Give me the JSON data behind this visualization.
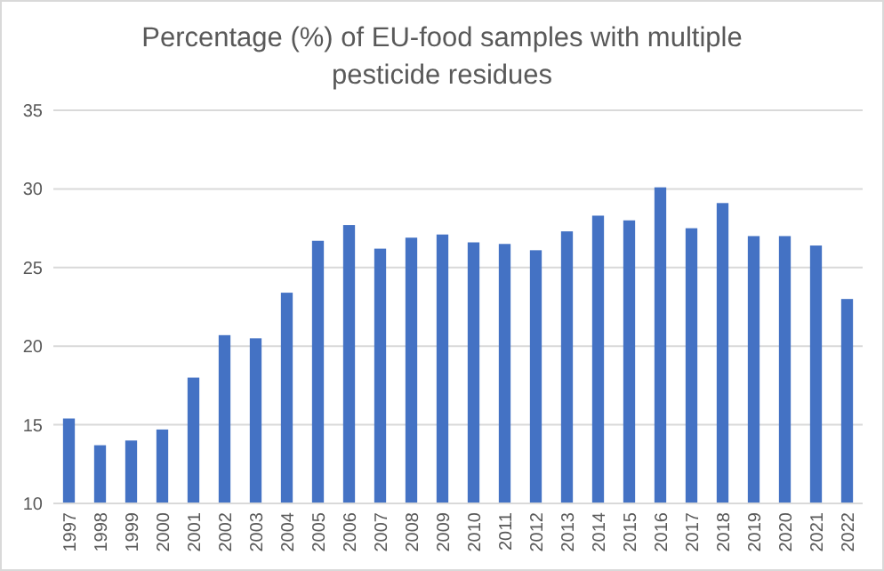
{
  "chart_data": {
    "type": "bar",
    "title": "Percentage (%) of EU-food samples with multiple pesticide residues",
    "categories": [
      "1997",
      "1998",
      "1999",
      "2000",
      "2001",
      "2002",
      "2003",
      "2004",
      "2005",
      "2006",
      "2007",
      "2008",
      "2009",
      "2010",
      "2011",
      "2012",
      "2013",
      "2014",
      "2015",
      "2016",
      "2017",
      "2018",
      "2019",
      "2020",
      "2021",
      "2022"
    ],
    "values": [
      15.4,
      13.7,
      14.0,
      14.7,
      18.0,
      20.7,
      20.5,
      23.4,
      26.7,
      27.7,
      26.2,
      26.9,
      27.1,
      26.6,
      26.5,
      26.1,
      27.3,
      28.3,
      28.0,
      30.1,
      27.5,
      29.1,
      27.0,
      27.0,
      26.4,
      23.0
    ],
    "color": "#4472c4",
    "ylim": [
      10,
      35
    ],
    "yticks": [
      10,
      15,
      20,
      25,
      30,
      35
    ],
    "grid": true
  }
}
